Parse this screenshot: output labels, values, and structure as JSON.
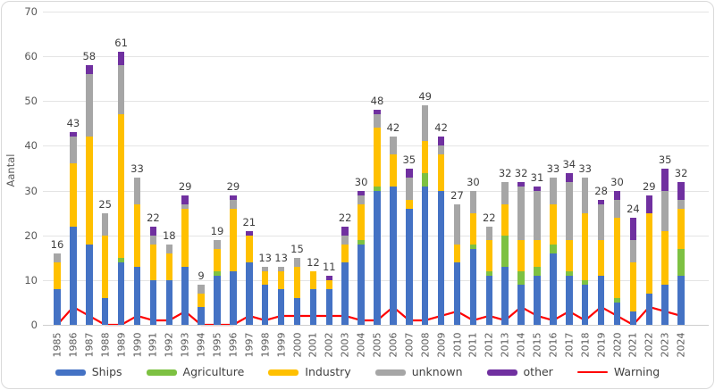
{
  "chart_data": {
    "type": "bar",
    "stacked": true,
    "title": "",
    "xlabel": "",
    "ylabel": "Aantal",
    "ylim": [
      0,
      70
    ],
    "ytick_step": 10,
    "grid": true,
    "legend_position": "bottom",
    "categories": [
      "1985",
      "1986",
      "1987",
      "1988",
      "1989",
      "1990",
      "1991",
      "1992",
      "1993",
      "1994",
      "1995",
      "1996",
      "1997",
      "1998",
      "1999",
      "2000",
      "2001",
      "2002",
      "2003",
      "2004",
      "2005",
      "2006",
      "2007",
      "2008",
      "2009",
      "2010",
      "2011",
      "2012",
      "2013",
      "2014",
      "2015",
      "2016",
      "2017",
      "2018",
      "2019",
      "2020",
      "2021",
      "2022",
      "2023",
      "2024"
    ],
    "series": [
      {
        "name": "Ships",
        "type": "bar",
        "color": "#4472C4",
        "values": [
          8,
          22,
          18,
          6,
          14,
          13,
          10,
          10,
          13,
          4,
          11,
          12,
          14,
          9,
          8,
          6,
          8,
          8,
          14,
          18,
          30,
          31,
          26,
          31,
          30,
          14,
          17,
          11,
          13,
          9,
          11,
          16,
          11,
          9,
          11,
          5,
          3,
          7,
          9,
          11
        ]
      },
      {
        "name": "Agriculture",
        "type": "bar",
        "color": "#7DC142",
        "values": [
          0,
          0,
          0,
          0,
          1,
          0,
          0,
          0,
          0,
          0,
          1,
          0,
          0,
          0,
          0,
          0,
          0,
          0,
          0,
          1,
          1,
          0,
          0,
          3,
          0,
          0,
          1,
          1,
          7,
          3,
          2,
          2,
          1,
          1,
          0,
          1,
          0,
          0,
          0,
          6
        ]
      },
      {
        "name": "Industry",
        "type": "bar",
        "color": "#FFC000",
        "values": [
          6,
          14,
          24,
          14,
          32,
          14,
          8,
          6,
          13,
          3,
          5,
          14,
          6,
          3,
          4,
          7,
          4,
          2,
          4,
          8,
          13,
          7,
          2,
          7,
          8,
          4,
          7,
          7,
          7,
          7,
          6,
          9,
          7,
          15,
          8,
          18,
          11,
          18,
          12,
          9
        ]
      },
      {
        "name": "unknown",
        "type": "bar",
        "color": "#A6A6A6",
        "values": [
          2,
          6,
          14,
          5,
          11,
          6,
          2,
          2,
          1,
          2,
          2,
          2,
          0,
          1,
          1,
          2,
          0,
          0,
          2,
          2,
          3,
          4,
          5,
          8,
          2,
          9,
          5,
          3,
          5,
          12,
          11,
          6,
          13,
          8,
          8,
          4,
          5,
          0,
          9,
          2
        ]
      },
      {
        "name": "other",
        "type": "bar",
        "color": "#7030A0",
        "values": [
          0,
          1,
          2,
          0,
          3,
          0,
          2,
          0,
          2,
          0,
          0,
          1,
          1,
          0,
          0,
          0,
          0,
          1,
          2,
          1,
          1,
          0,
          2,
          0,
          2,
          0,
          0,
          0,
          0,
          1,
          1,
          0,
          2,
          0,
          1,
          2,
          5,
          4,
          5,
          4
        ]
      },
      {
        "name": "Warning",
        "type": "line",
        "color": "#FF0000",
        "values": [
          0,
          4,
          2,
          0,
          0,
          2,
          1,
          1,
          3,
          0,
          0,
          0,
          2,
          1,
          2,
          2,
          2,
          2,
          2,
          1,
          1,
          4,
          1,
          1,
          2,
          3,
          1,
          2,
          1,
          4,
          2,
          1,
          3,
          1,
          4,
          2,
          0,
          4,
          3,
          2
        ]
      }
    ],
    "bar_totals": [
      16,
      43,
      58,
      25,
      61,
      33,
      22,
      18,
      29,
      9,
      19,
      29,
      21,
      13,
      13,
      15,
      12,
      11,
      22,
      30,
      48,
      42,
      35,
      49,
      42,
      27,
      30,
      22,
      32,
      32,
      31,
      33,
      34,
      33,
      28,
      30,
      24,
      29,
      35,
      32
    ],
    "yticks": [
      0,
      10,
      20,
      30,
      40,
      50,
      60,
      70
    ]
  },
  "colors": {
    "ships": "#4472C4",
    "agriculture": "#7DC142",
    "industry": "#FFC000",
    "unknown": "#A6A6A6",
    "other": "#7030A0",
    "warning": "#FF0000",
    "grid": "#E4E4E4",
    "axis_text": "#595959",
    "label_text": "#404040",
    "border": "#D9D9D9"
  },
  "legend": {
    "items": [
      {
        "label": "Ships",
        "color": "#4472C4",
        "shape": "bar"
      },
      {
        "label": "Agriculture",
        "color": "#7DC142",
        "shape": "bar"
      },
      {
        "label": "Industry",
        "color": "#FFC000",
        "shape": "bar"
      },
      {
        "label": "unknown",
        "color": "#A6A6A6",
        "shape": "bar"
      },
      {
        "label": "other",
        "color": "#7030A0",
        "shape": "bar"
      },
      {
        "label": "Warning",
        "color": "#FF0000",
        "shape": "line"
      }
    ]
  }
}
